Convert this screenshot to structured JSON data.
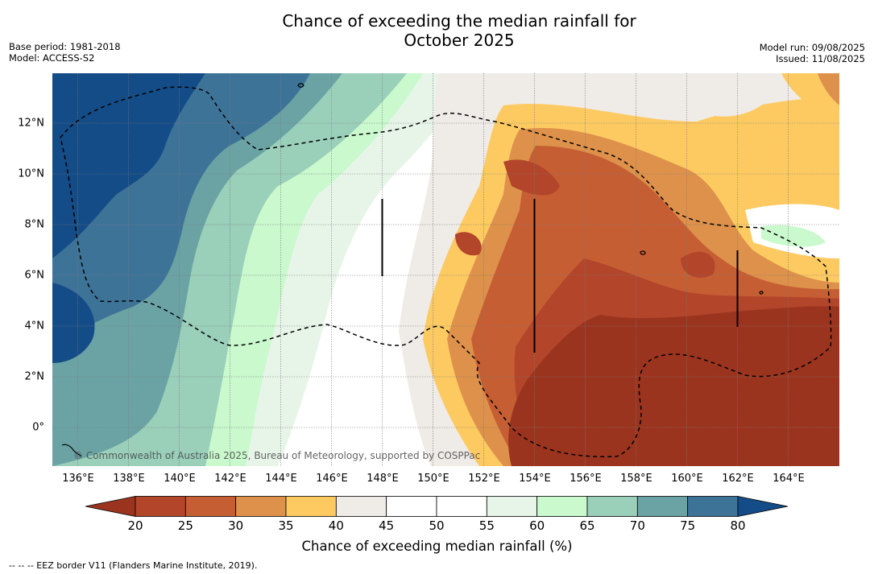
{
  "title_line1": "Chance of exceeding the median rainfall for",
  "title_line2": "October 2025",
  "base_period": "Base period: 1981-2018",
  "model": "Model: ACCESS-S2",
  "model_run": "Model run: 09/08/2025",
  "issued": "Issued: 11/08/2025",
  "map": {
    "lon_range": [
      135,
      166
    ],
    "lat_range": [
      -1.5,
      14
    ],
    "lat_ticks": [
      "12°N",
      "10°N",
      "8°N",
      "6°N",
      "4°N",
      "2°N",
      "0°"
    ],
    "lon_ticks": [
      "136°E",
      "138°E",
      "140°E",
      "142°E",
      "144°E",
      "146°E",
      "148°E",
      "150°E",
      "152°E",
      "154°E",
      "156°E",
      "158°E",
      "160°E",
      "162°E",
      "164°E"
    ],
    "grid": true,
    "border_style": "dashed"
  },
  "copyright": "© Commonwealth of Australia 2025, Bureau of Meteorology, supported by COSPPac",
  "colorbar": {
    "ticks": [
      "20",
      "25",
      "30",
      "35",
      "40",
      "45",
      "50",
      "55",
      "60",
      "65",
      "70",
      "75",
      "80"
    ],
    "colors": [
      "#9b341f",
      "#b2452a",
      "#c65e34",
      "#de914b",
      "#fdca62",
      "#efebe7",
      "#ffffff",
      "#ffffff",
      "#e7f5e9",
      "#c9f9cd",
      "#9acfba",
      "#6ba3a4",
      "#3e7398",
      "#144c87"
    ],
    "label": "Chance of exceeding median rainfall (%)"
  },
  "footnote": "--  --  -- EEZ border V11 (Flanders Marine Institute, 2019)."
}
